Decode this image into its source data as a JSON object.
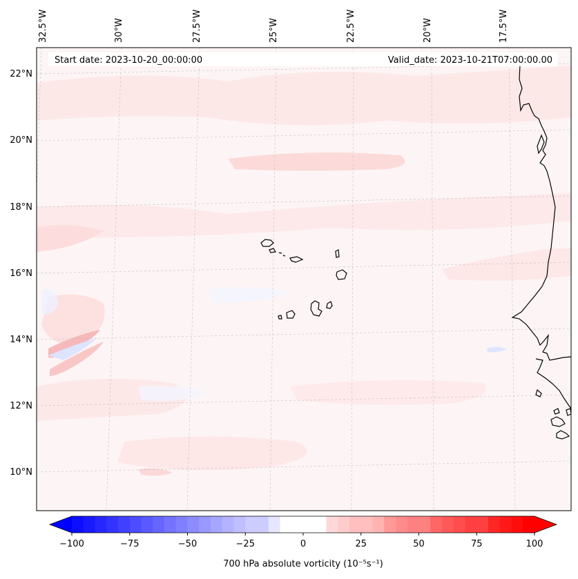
{
  "header": {
    "start_date": "Start date: 2023-10-20_00:00:00",
    "valid_date": "Valid_date: 2023-10-21T07:00:00.00"
  },
  "map": {
    "projection": "lambert-conformal",
    "lon_labels": [
      "32.5°W",
      "30°W",
      "27.5°W",
      "25°W",
      "22.5°W",
      "20°W",
      "17.5°W"
    ],
    "lat_labels": [
      "22°N",
      "20°N",
      "18°N",
      "16°N",
      "14°N",
      "12°N",
      "10°N"
    ],
    "field": "700 hPa absolute vorticity",
    "gridlines": "dashed",
    "colors": {
      "positive": "#ff0000",
      "negative": "#0000ff",
      "neutral": "#ffffff"
    }
  },
  "colorbar": {
    "label": "700 hPa absolute vorticity (10⁻⁵s⁻¹)",
    "ticks": [
      "−100",
      "−75",
      "−50",
      "−25",
      "0",
      "25",
      "50",
      "75",
      "100"
    ],
    "range": [
      -100,
      100
    ],
    "orientation": "horizontal",
    "extend": "both"
  }
}
